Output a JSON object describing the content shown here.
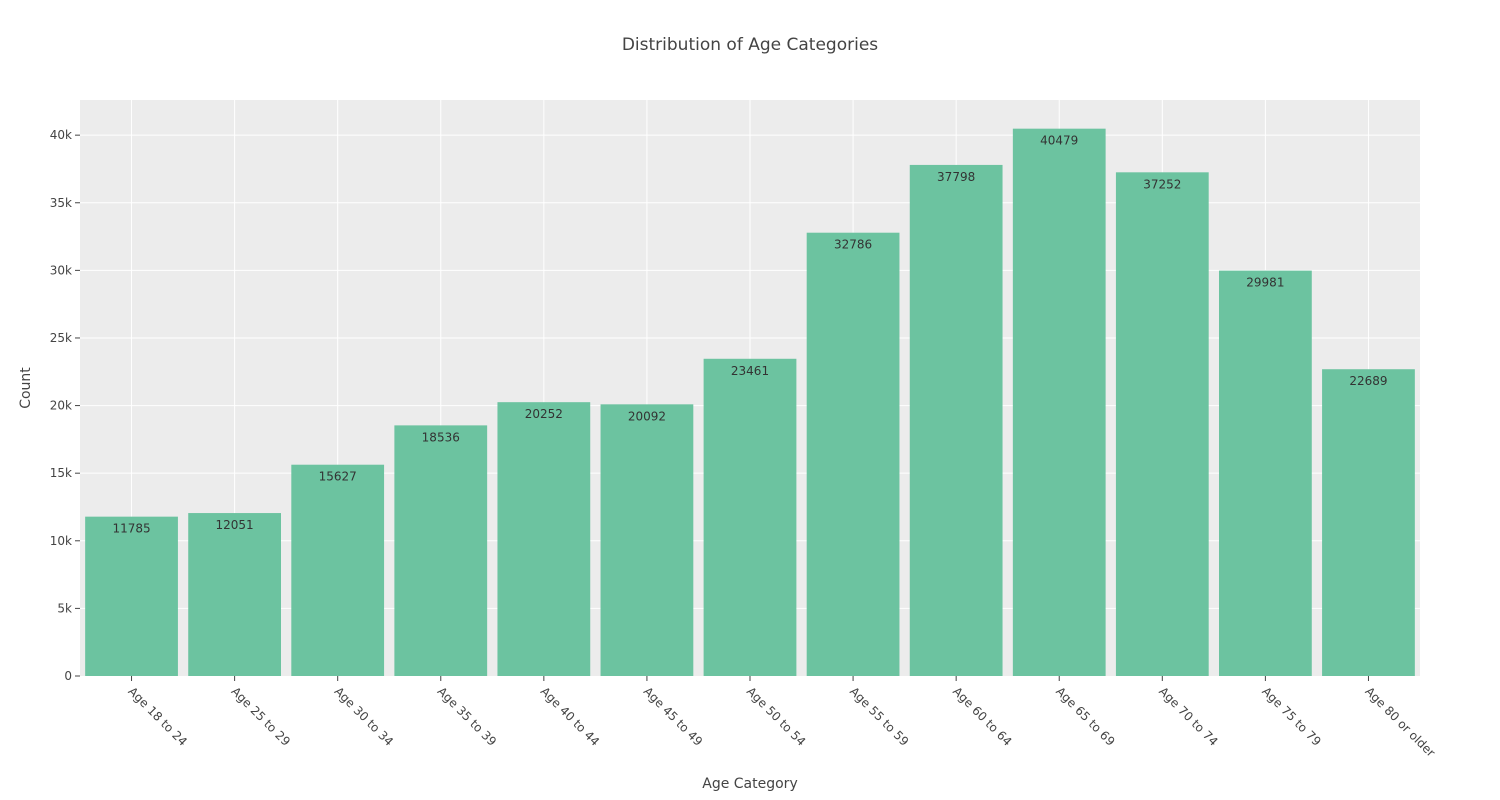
{
  "chart_data": {
    "type": "bar",
    "title": "Distribution of Age Categories",
    "xlabel": "Age Category",
    "ylabel": "Count",
    "categories": [
      "Age 18 to 24",
      "Age 25 to 29",
      "Age 30 to 34",
      "Age 35 to 39",
      "Age 40 to 44",
      "Age 45 to 49",
      "Age 50 to 54",
      "Age 55 to 59",
      "Age 60 to 64",
      "Age 65 to 69",
      "Age 70 to 74",
      "Age 75 to 79",
      "Age 80 or older"
    ],
    "values": [
      11785,
      12051,
      15627,
      18536,
      20252,
      20092,
      23461,
      32786,
      37798,
      40479,
      37252,
      29981,
      22689
    ],
    "ylim": [
      0,
      42600
    ],
    "yticks": [
      0,
      5000,
      10000,
      15000,
      20000,
      25000,
      30000,
      35000,
      40000
    ],
    "ytick_labels": [
      "0",
      "5k",
      "10k",
      "15k",
      "20k",
      "25k",
      "30k",
      "35k",
      "40k"
    ],
    "grid": true,
    "legend": "none",
    "bar_color": "#6cc3a0",
    "plot_background": "#ececec",
    "grid_color": "#ffffff"
  }
}
